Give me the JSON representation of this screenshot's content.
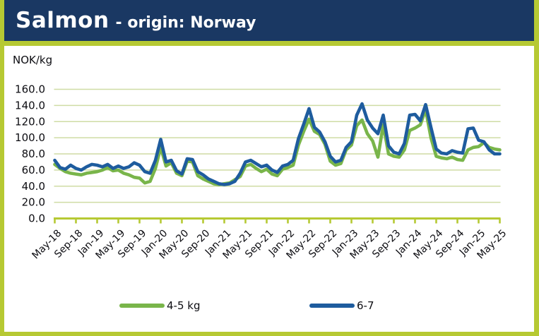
{
  "header": {
    "product": "Salmon",
    "suffix": "- origin: Norway"
  },
  "colors": {
    "header_bg": "#1a3863",
    "frame_green": "#b6c933",
    "grid": "#cfdca4",
    "axis": "#b6c933",
    "text": "#0d0d12",
    "series_green": "#79b54a",
    "series_blue": "#1e5c9e"
  },
  "legend": {
    "items": [
      {
        "label": "4-5 kg",
        "color": "#79b54a"
      },
      {
        "label": "6-7",
        "color": "#1e5c9e"
      }
    ]
  },
  "chart_data": {
    "type": "line",
    "title": "Salmon - origin: Norway",
    "ylabel_unit": "NOK/kg",
    "x_start": "May-18",
    "x_frequency": "monthly",
    "x_tick_every": 4,
    "tick_labels": [
      "May-18",
      "Sep-18",
      "Jan-19",
      "May-19",
      "Sep-19",
      "Jan-20",
      "May-20",
      "Sep-20",
      "Jan-21",
      "May-21",
      "Sep-21",
      "Jan-22",
      "May-22",
      "Sep-22",
      "Jan-23",
      "May-23",
      "Sep-23",
      "Jan-24",
      "May-24",
      "Sep-24",
      "Jan-25",
      "May-25"
    ],
    "ytick_labels": [
      "0.0",
      "20.0",
      "40.0",
      "60.0",
      "80.0",
      "100.0",
      "120.0",
      "140.0",
      "160.0"
    ],
    "ylim": [
      0,
      160
    ],
    "grid": true,
    "legend_position": "bottom",
    "series": [
      {
        "name": "4-5 kg",
        "color": "#79b54a",
        "values": [
          67,
          62,
          58,
          56,
          55,
          54,
          56,
          57,
          58,
          60,
          63,
          59,
          60,
          56,
          54,
          51,
          50,
          44,
          46,
          62,
          88,
          65,
          69,
          56,
          53,
          71,
          70,
          53,
          49,
          46,
          43,
          42,
          43,
          44,
          48,
          52,
          65,
          67,
          62,
          58,
          61,
          55,
          53,
          61,
          63,
          66,
          91,
          108,
          123,
          108,
          104,
          92,
          71,
          66,
          68,
          85,
          91,
          115,
          122,
          105,
          96,
          76,
          116,
          80,
          77,
          76,
          85,
          109,
          112,
          116,
          135,
          100,
          77,
          75,
          74,
          76,
          73,
          72,
          85,
          88,
          89,
          94,
          88,
          86,
          85
        ]
      },
      {
        "name": "6-7",
        "color": "#1e5c9e",
        "values": [
          72,
          63,
          61,
          66,
          62,
          60,
          64,
          67,
          66,
          64,
          67,
          62,
          65,
          62,
          64,
          69,
          66,
          58,
          56,
          72,
          98,
          70,
          72,
          59,
          55,
          74,
          73,
          58,
          54,
          49,
          46,
          43,
          42,
          43,
          46,
          56,
          70,
          72,
          68,
          64,
          66,
          60,
          57,
          65,
          67,
          72,
          99,
          117,
          136,
          113,
          107,
          95,
          77,
          70,
          72,
          88,
          95,
          128,
          142,
          122,
          112,
          105,
          128,
          90,
          82,
          80,
          93,
          128,
          129,
          121,
          141,
          113,
          86,
          81,
          80,
          84,
          82,
          81,
          111,
          112,
          97,
          95,
          85,
          80,
          80
        ]
      }
    ]
  }
}
